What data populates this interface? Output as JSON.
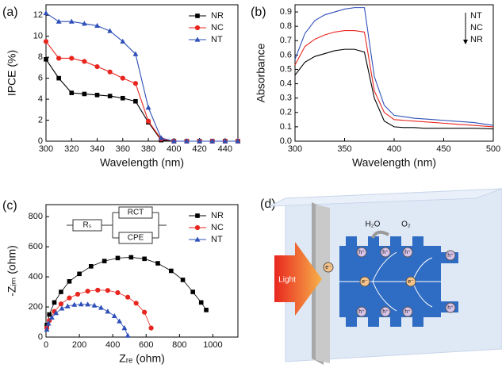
{
  "chart_data": [
    {
      "type": "line",
      "panel_label": "(a)",
      "x_label": "Wavelength (nm)",
      "y_label": "IPCE (%)",
      "x": [
        300,
        310,
        320,
        330,
        340,
        350,
        360,
        370,
        380,
        390,
        400,
        410,
        420,
        430,
        440,
        450
      ],
      "series": [
        {
          "name": "NR",
          "color": "#000000",
          "marker": "square",
          "values": [
            7.8,
            6.0,
            4.6,
            4.5,
            4.4,
            4.3,
            4.1,
            3.8,
            1.8,
            0.1,
            0,
            0,
            0,
            0,
            0,
            0
          ]
        },
        {
          "name": "NC",
          "color": "#e8261f",
          "marker": "circle",
          "values": [
            9.5,
            7.9,
            7.9,
            7.6,
            7.1,
            6.6,
            6.0,
            5.5,
            1.9,
            0.2,
            0,
            0,
            0,
            0,
            0,
            0
          ]
        },
        {
          "name": "NT",
          "color": "#2e4fb8",
          "marker": "triangle",
          "values": [
            12.2,
            11.4,
            11.4,
            11.2,
            11.0,
            10.5,
            9.5,
            8.3,
            3.2,
            0.3,
            0,
            0,
            0,
            0,
            0,
            0
          ]
        }
      ],
      "xlim": [
        300,
        450
      ],
      "xticks": [
        300,
        320,
        340,
        360,
        380,
        400,
        420,
        440
      ],
      "ylim": [
        0,
        13
      ],
      "yticks": [
        0,
        2,
        4,
        6,
        8,
        10,
        12
      ],
      "legend": "upper right"
    },
    {
      "type": "line",
      "panel_label": "(b)",
      "x_label": "Wavelength (nm)",
      "y_label": "Absorbance",
      "x": [
        300,
        310,
        320,
        330,
        340,
        350,
        360,
        370,
        380,
        390,
        400,
        410,
        420,
        430,
        440,
        450,
        460,
        470,
        480,
        490,
        500
      ],
      "series": [
        {
          "name": "NT",
          "color": "#2e4fb8",
          "values": [
            0.57,
            0.75,
            0.84,
            0.88,
            0.9,
            0.92,
            0.93,
            0.93,
            0.45,
            0.25,
            0.18,
            0.17,
            0.16,
            0.155,
            0.15,
            0.145,
            0.14,
            0.135,
            0.13,
            0.12,
            0.11
          ]
        },
        {
          "name": "NC",
          "color": "#e8261f",
          "values": [
            0.53,
            0.66,
            0.71,
            0.74,
            0.76,
            0.77,
            0.77,
            0.76,
            0.35,
            0.2,
            0.15,
            0.145,
            0.14,
            0.135,
            0.13,
            0.125,
            0.12,
            0.115,
            0.11,
            0.105,
            0.1
          ]
        },
        {
          "name": "NR",
          "color": "#000000",
          "values": [
            0.46,
            0.55,
            0.59,
            0.61,
            0.63,
            0.64,
            0.64,
            0.62,
            0.3,
            0.14,
            0.1,
            0.095,
            0.095,
            0.09,
            0.09,
            0.09,
            0.09,
            0.09,
            0.09,
            0.088,
            0.085
          ]
        }
      ],
      "xlim": [
        300,
        500
      ],
      "xticks": [
        300,
        350,
        400,
        450,
        500
      ],
      "ylim": [
        0,
        0.95
      ],
      "yticks": [
        {
          "value": 0,
          "label": "0.0"
        },
        0.1,
        0.2,
        0.3,
        0.4,
        0.5,
        0.6,
        0.7,
        0.8,
        0.9
      ],
      "legend": "upper right"
    },
    {
      "type": "scatter",
      "panel_label": "(c)",
      "x_label": "Zᵣₑ (ohm)",
      "y_label": "-Zᵢₘ (ohm)",
      "inset_labels": [
        "Rₛ",
        "RCT",
        "CPE"
      ],
      "series": [
        {
          "name": "NR",
          "color": "#000000",
          "marker": "square",
          "x": [
            5,
            20,
            50,
            90,
            140,
            200,
            270,
            350,
            430,
            510,
            590,
            670,
            750,
            820,
            880,
            930,
            960
          ],
          "values": [
            80,
            150,
            230,
            300,
            370,
            420,
            470,
            505,
            525,
            530,
            520,
            490,
            440,
            380,
            300,
            230,
            180
          ]
        },
        {
          "name": "NC",
          "color": "#e8261f",
          "marker": "circle",
          "x": [
            5,
            20,
            50,
            90,
            140,
            190,
            250,
            310,
            370,
            430,
            490,
            540,
            590,
            630
          ],
          "values": [
            60,
            110,
            170,
            220,
            260,
            285,
            305,
            312,
            310,
            295,
            265,
            225,
            165,
            60
          ]
        },
        {
          "name": "NT",
          "color": "#2e4fb8",
          "marker": "triangle",
          "x": [
            5,
            15,
            35,
            60,
            95,
            130,
            170,
            210,
            250,
            290,
            330,
            370,
            410,
            440,
            470,
            490
          ],
          "values": [
            50,
            90,
            130,
            160,
            190,
            205,
            215,
            218,
            217,
            210,
            195,
            170,
            140,
            105,
            60,
            10
          ]
        }
      ],
      "xlim": [
        0,
        1150
      ],
      "xticks": [
        0,
        200,
        400,
        600,
        800,
        1000
      ],
      "ylim": [
        0,
        880
      ],
      "yticks": [
        0,
        200,
        400,
        600,
        800
      ],
      "legend": "upper right"
    }
  ],
  "diagram": {
    "panel_label": "(d)",
    "light": "Light",
    "water": "H₂O",
    "oxygen": "O₂",
    "electron": "e⁻",
    "hole": "h⁺"
  }
}
